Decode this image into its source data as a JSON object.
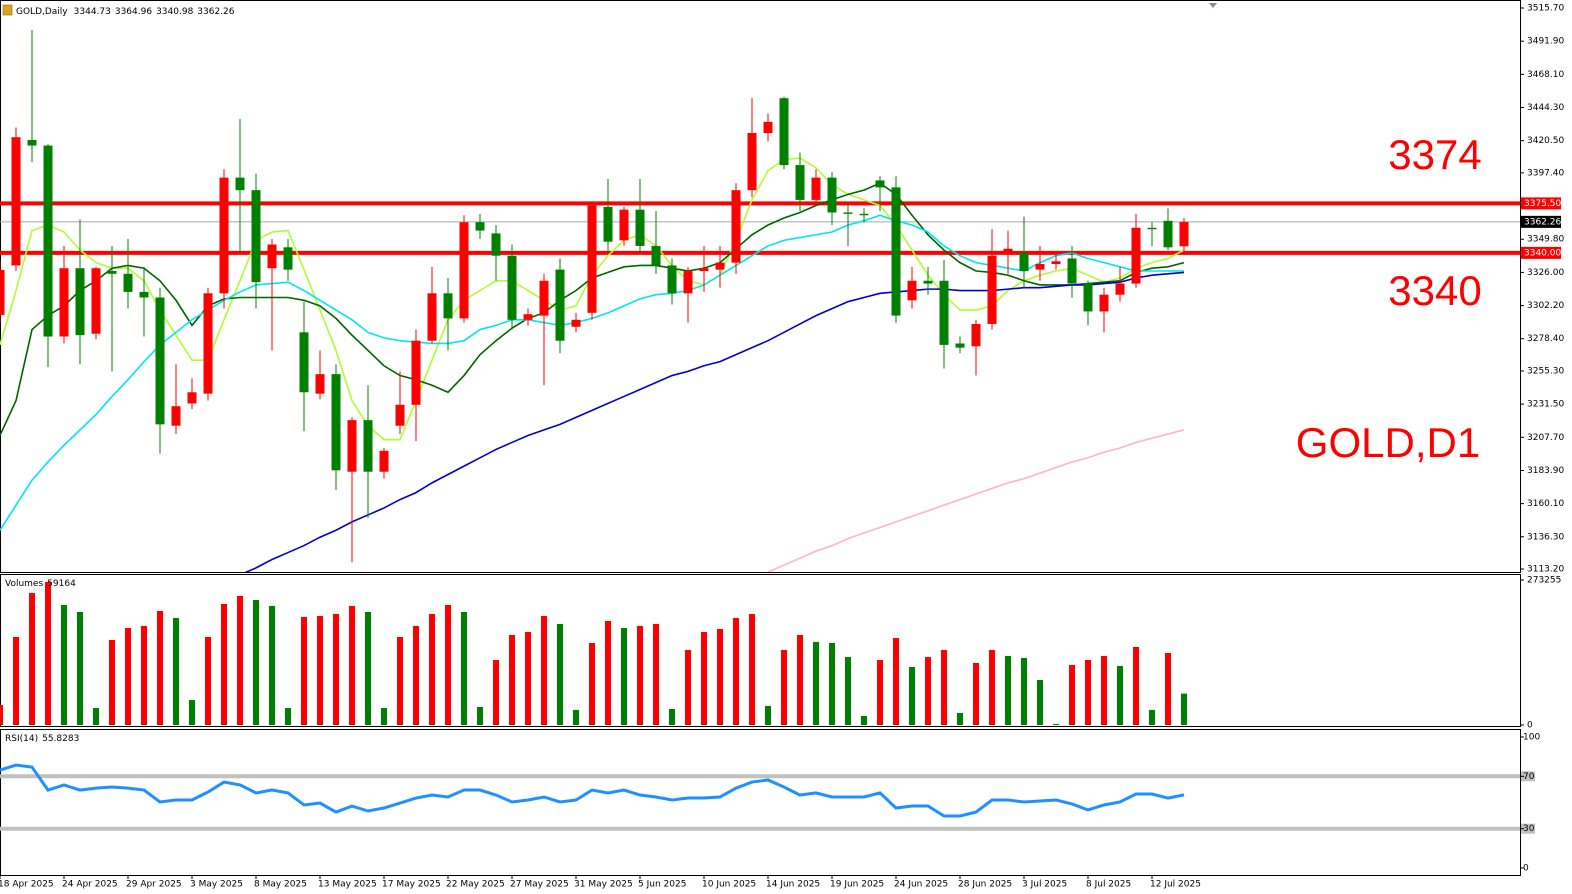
{
  "chart_data": {
    "type": "candlestick",
    "title": "GOLD,Daily",
    "categories": [
      "18 Apr 2025",
      null,
      null,
      null,
      "24 Apr 2025",
      null,
      null,
      null,
      "29 Apr 2025",
      null,
      null,
      null,
      "3 May 2025",
      null,
      null,
      null,
      "8 May 2025",
      null,
      null,
      null,
      "13 May 2025",
      null,
      null,
      null,
      "17 May 2025",
      null,
      null,
      null,
      "22 May 2025",
      null,
      null,
      null,
      "27 May 2025",
      null,
      null,
      null,
      "31 May 2025",
      null,
      null,
      null,
      "5 Jun 2025",
      null,
      null,
      null,
      "10 Jun 2025",
      null,
      null,
      null,
      "14 Jun 2025",
      null,
      null,
      null,
      "19 Jun 2025",
      null,
      null,
      null,
      "24 Jun 2025",
      null,
      null,
      null,
      "28 Jun 2025",
      null,
      null,
      null,
      "3 Jul 2025",
      null,
      null,
      null,
      "8 Jul 2025",
      null,
      null,
      null,
      "12 Jul 2025",
      null,
      null
    ],
    "open": [
      3295.5,
      3331,
      3421,
      3417,
      3280,
      3329,
      3282,
      3327,
      3325,
      3312,
      3308,
      3216,
      3232,
      3239,
      3311,
      3394,
      3385,
      3329,
      3344,
      3283,
      3239,
      3253,
      3183,
      3220,
      3183,
      3216,
      3231,
      3277,
      3311,
      3293,
      3362,
      3354,
      3338,
      3292,
      3295,
      3328,
      3287,
      3297,
      3373,
      3349,
      3371,
      3345,
      3331,
      3311,
      3327,
      3328,
      3333,
      3385,
      3426,
      3451,
      3403,
      3378,
      3394,
      3369,
      3368,
      3392,
      3387,
      3306,
      3320,
      3320,
      3275,
      3273,
      3289,
      3339,
      3340,
      3328,
      3332,
      3336,
      3318,
      3298,
      3310,
      3318,
      3358,
      3363,
      3344.73
    ],
    "high": [
      3335,
      3430,
      3500,
      3418,
      3345,
      3364,
      3330,
      3345,
      3350,
      3330,
      3315,
      3260,
      3250,
      3315,
      3400,
      3436,
      3397,
      3350,
      3350,
      3305,
      3270,
      3260,
      3222,
      3245,
      3200,
      3255,
      3285,
      3330,
      3322,
      3367,
      3368,
      3360,
      3346,
      3300,
      3325,
      3336,
      3297,
      3377,
      3393,
      3373,
      3393,
      3370,
      3336,
      3330,
      3345,
      3345,
      3390,
      3451,
      3440,
      3452,
      3412,
      3400,
      3398,
      3375,
      3372,
      3395,
      3395,
      3330,
      3330,
      3335,
      3280,
      3292,
      3357,
      3356,
      3366,
      3345,
      3340,
      3345,
      3320,
      3315,
      3330,
      3368,
      3362,
      3372,
      3364.96
    ],
    "low": [
      3290,
      3327,
      3405,
      3258,
      3275,
      3260,
      3278,
      3255,
      3300,
      3280,
      3196,
      3210,
      3228,
      3234,
      3300,
      3340,
      3300,
      3270,
      3320,
      3212,
      3235,
      3170,
      3118,
      3150,
      3178,
      3210,
      3205,
      3275,
      3270,
      3290,
      3350,
      3320,
      3285,
      3288,
      3245,
      3268,
      3283,
      3292,
      3340,
      3345,
      3340,
      3325,
      3303,
      3290,
      3312,
      3315,
      3325,
      3380,
      3420,
      3400,
      3370,
      3374,
      3360,
      3345,
      3362,
      3370,
      3290,
      3300,
      3310,
      3257,
      3268,
      3252,
      3285,
      3325,
      3315,
      3320,
      3328,
      3308,
      3288,
      3283,
      3305,
      3315,
      3345,
      3342,
      3340.98
    ],
    "close": [
      3327.8,
      3423,
      3417,
      3280,
      3329,
      3281,
      3329,
      3325,
      3312,
      3308,
      3217,
      3230,
      3240,
      3311,
      3394,
      3385,
      3319,
      3346,
      3328,
      3240,
      3253,
      3184,
      3220,
      3183,
      3198,
      3231,
      3277,
      3311,
      3293,
      3362,
      3356,
      3338,
      3292,
      3296,
      3320,
      3277,
      3292,
      3374,
      3348,
      3371,
      3345,
      3331,
      3311,
      3327,
      3329,
      3333,
      3385,
      3426,
      3434,
      3403,
      3378,
      3394,
      3369,
      3368,
      3367,
      3387,
      3295,
      3320,
      3318,
      3274,
      3272,
      3289,
      3338,
      3343,
      3327,
      3332,
      3334,
      3318,
      3298,
      3310,
      3318,
      3358,
      3357,
      3344,
      3362.26
    ],
    "bull_color": "#ff0000",
    "bear_color": "#008000",
    "ylim": [
      3113.2,
      3515.7
    ],
    "yticks": [
      {
        "value": 3113.2,
        "label": "3113.20"
      },
      {
        "value": 3136.3,
        "label": "3136.30"
      },
      {
        "value": 3160.1,
        "label": "3160.10"
      },
      {
        "value": 3183.9,
        "label": "3183.90"
      },
      {
        "value": 3207.7,
        "label": "3207.70"
      },
      {
        "value": 3231.5,
        "label": "3231.50"
      },
      {
        "value": 3255.3,
        "label": "3255.30"
      },
      {
        "value": 3278.4,
        "label": "3278.40"
      },
      {
        "value": 3302.2,
        "label": "3302.20"
      },
      {
        "value": 3326,
        "label": "3326.00"
      },
      {
        "value": 3349.8,
        "label": "3349.80"
      },
      {
        "value": 3397.4,
        "label": "3397.40"
      },
      {
        "value": 3420.5,
        "label": "3420.50"
      },
      {
        "value": 3444.3,
        "label": "3444.30"
      },
      {
        "value": 3468.1,
        "label": "3468.10"
      },
      {
        "value": 3491.9,
        "label": "3491.90"
      },
      {
        "value": 3515.7,
        "label": "3515.70"
      }
    ],
    "levels": [
      {
        "value": 3375.5,
        "label": "3375.50",
        "color": "#ff0000"
      },
      {
        "value": 3340,
        "label": "3340.00",
        "color": "#ff0000"
      }
    ],
    "current_price": 3362.26,
    "annotations": [
      "3374",
      "3340",
      "GOLD,D1"
    ],
    "moving_averages": [
      {
        "color": "#adff2f",
        "values": [
          3274,
          3313,
          3356,
          3360,
          3355,
          3342,
          3333,
          3329,
          3329,
          3320,
          3299,
          3281,
          3263,
          3263,
          3292,
          3320,
          3349,
          3355,
          3356,
          3328,
          3299,
          3270,
          3234,
          3216,
          3206,
          3206,
          3234,
          3263,
          3292,
          3306,
          3313,
          3320,
          3320,
          3313,
          3306,
          3299,
          3302,
          3324,
          3338,
          3349,
          3353,
          3345,
          3331,
          3320,
          3317,
          3324,
          3349,
          3378,
          3399,
          3407,
          3408,
          3401,
          3389,
          3382,
          3378,
          3374,
          3360,
          3342,
          3324,
          3310,
          3299,
          3299,
          3302,
          3313,
          3320,
          3324,
          3327,
          3329,
          3324,
          3319,
          3322,
          3329,
          3333,
          3336,
          3342
        ]
      },
      {
        "color": "#006400",
        "values": [
          3209,
          3234,
          3285,
          3295,
          3302,
          3313,
          3320,
          3329,
          3331,
          3329,
          3320,
          3306,
          3288,
          3302,
          3307,
          3308,
          3308,
          3308,
          3308,
          3306,
          3302,
          3293,
          3281,
          3270,
          3259,
          3252,
          3249,
          3245,
          3240,
          3252,
          3267,
          3277,
          3286,
          3293,
          3297,
          3306,
          3313,
          3322,
          3326,
          3330,
          3331,
          3331,
          3329,
          3327,
          3329,
          3333,
          3343,
          3353,
          3360,
          3365,
          3369,
          3374,
          3378,
          3382,
          3385,
          3390,
          3382,
          3367,
          3353,
          3342,
          3333,
          3327,
          3326,
          3324,
          3320,
          3317,
          3317,
          3317,
          3318,
          3319,
          3320,
          3326,
          3329,
          3330,
          3333
        ]
      },
      {
        "color": "#00e5ee",
        "values": [
          3141,
          3159,
          3177,
          3190,
          3202,
          3213,
          3224,
          3237,
          3249,
          3262,
          3274,
          3283,
          3292,
          3299,
          3306,
          3312,
          3317,
          3318,
          3319,
          3313,
          3306,
          3299,
          3292,
          3283,
          3279,
          3277,
          3276,
          3275,
          3275,
          3277,
          3285,
          3288,
          3292,
          3292,
          3290,
          3288,
          3290,
          3293,
          3297,
          3302,
          3307,
          3310,
          3311,
          3313,
          3317,
          3324,
          3331,
          3338,
          3345,
          3349,
          3351,
          3353,
          3355,
          3360,
          3363,
          3367,
          3363,
          3360,
          3355,
          3345,
          3338,
          3333,
          3331,
          3329,
          3327,
          3333,
          3338,
          3340,
          3336,
          3333,
          3330,
          3327,
          3327,
          3327,
          3327
        ]
      },
      {
        "color": "#0000cd",
        "values": [
          null,
          null,
          null,
          null,
          null,
          null,
          null,
          null,
          null,
          null,
          null,
          null,
          null,
          null,
          null,
          3109,
          3114,
          3120,
          3125,
          3130,
          3136,
          3141,
          3147,
          3152,
          3157,
          3163,
          3168,
          3175,
          3181,
          3187,
          3193,
          3199,
          3204,
          3209,
          3213,
          3217,
          3222,
          3227,
          3232,
          3237,
          3242,
          3247,
          3252,
          3255,
          3259,
          3262,
          3267,
          3272,
          3277,
          3283,
          3289,
          3295,
          3300,
          3305,
          3308,
          3311,
          3312,
          3313,
          3314,
          3314,
          3313,
          3313,
          3313,
          3314,
          3315,
          3315,
          3316,
          3317,
          3317,
          3318,
          3319,
          3322,
          3324,
          3325,
          3326
        ]
      },
      {
        "color": "#ffb6c1",
        "values": [
          null,
          null,
          null,
          null,
          null,
          null,
          null,
          null,
          null,
          null,
          null,
          null,
          null,
          null,
          null,
          null,
          null,
          null,
          null,
          null,
          null,
          null,
          null,
          null,
          null,
          null,
          null,
          null,
          null,
          null,
          null,
          null,
          null,
          null,
          null,
          null,
          null,
          null,
          null,
          null,
          null,
          null,
          null,
          null,
          null,
          null,
          null,
          null,
          3111,
          3116,
          3121,
          3126,
          3130,
          3135,
          3139,
          3143,
          3147,
          3151,
          3155,
          3159,
          3163,
          3167,
          3171,
          3175,
          3178,
          3182,
          3186,
          3190,
          3193,
          3197,
          3200,
          3204,
          3207,
          3210,
          3213
        ]
      }
    ],
    "volume": {
      "title": "Volumes",
      "values": [
        37700,
        165900,
        248800,
        269600,
        226200,
        213000,
        32000,
        160200,
        182800,
        186600,
        214900,
        201700,
        47100,
        165900,
        228100,
        243200,
        235600,
        224300,
        32000,
        203600,
        205500,
        209200,
        224300,
        213000,
        32000,
        165900,
        186600,
        209200,
        226200,
        213000,
        33900,
        122500,
        169700,
        175300,
        205500,
        190400,
        28300,
        154600,
        196000,
        182800,
        186600,
        190400,
        30200,
        141400,
        175300,
        181000,
        201700,
        209200,
        35800,
        141400,
        169700,
        156500,
        154600,
        128200,
        17000,
        122500,
        164000,
        109300,
        128200,
        141400,
        22600,
        116900,
        141400,
        130100,
        126300,
        84800,
        1900,
        113100,
        122500,
        130100,
        111200,
        147000,
        28300,
        135700,
        59164
      ],
      "rising_color": "#ff0000",
      "falling_color": "#008000",
      "ylim": [
        0,
        273255
      ],
      "yticks": [
        0,
        273255
      ]
    },
    "rsi": {
      "title": "RSI(14)",
      "color": "#1e90ff",
      "values": [
        74.8,
        78.6,
        77,
        59.5,
        63.4,
        59.5,
        61,
        61.8,
        61,
        59.5,
        50.4,
        51.9,
        51.9,
        58,
        65.6,
        63.4,
        57.3,
        59.5,
        57.3,
        48.1,
        49.6,
        42.7,
        47.3,
        43.5,
        45.8,
        49.6,
        53.4,
        55.7,
        54.2,
        59.5,
        59.5,
        55.7,
        50.4,
        51.9,
        54.2,
        50.4,
        51.9,
        59.5,
        57.3,
        59.5,
        55.7,
        54.2,
        51.9,
        53.4,
        53.4,
        54.2,
        61,
        65.6,
        67.2,
        61.8,
        55.7,
        57.3,
        54.2,
        54.2,
        54.2,
        57.3,
        45.8,
        47.3,
        47.3,
        39.7,
        39.7,
        42.7,
        51.9,
        51.9,
        50.4,
        51.1,
        51.9,
        48.9,
        44.3,
        48.1,
        50.4,
        56.5,
        56.5,
        53.4,
        55.8283
      ],
      "ylim": [
        0,
        100
      ],
      "yticks": [
        0,
        30,
        70,
        100
      ],
      "levels": [
        70,
        30
      ]
    }
  }
}
